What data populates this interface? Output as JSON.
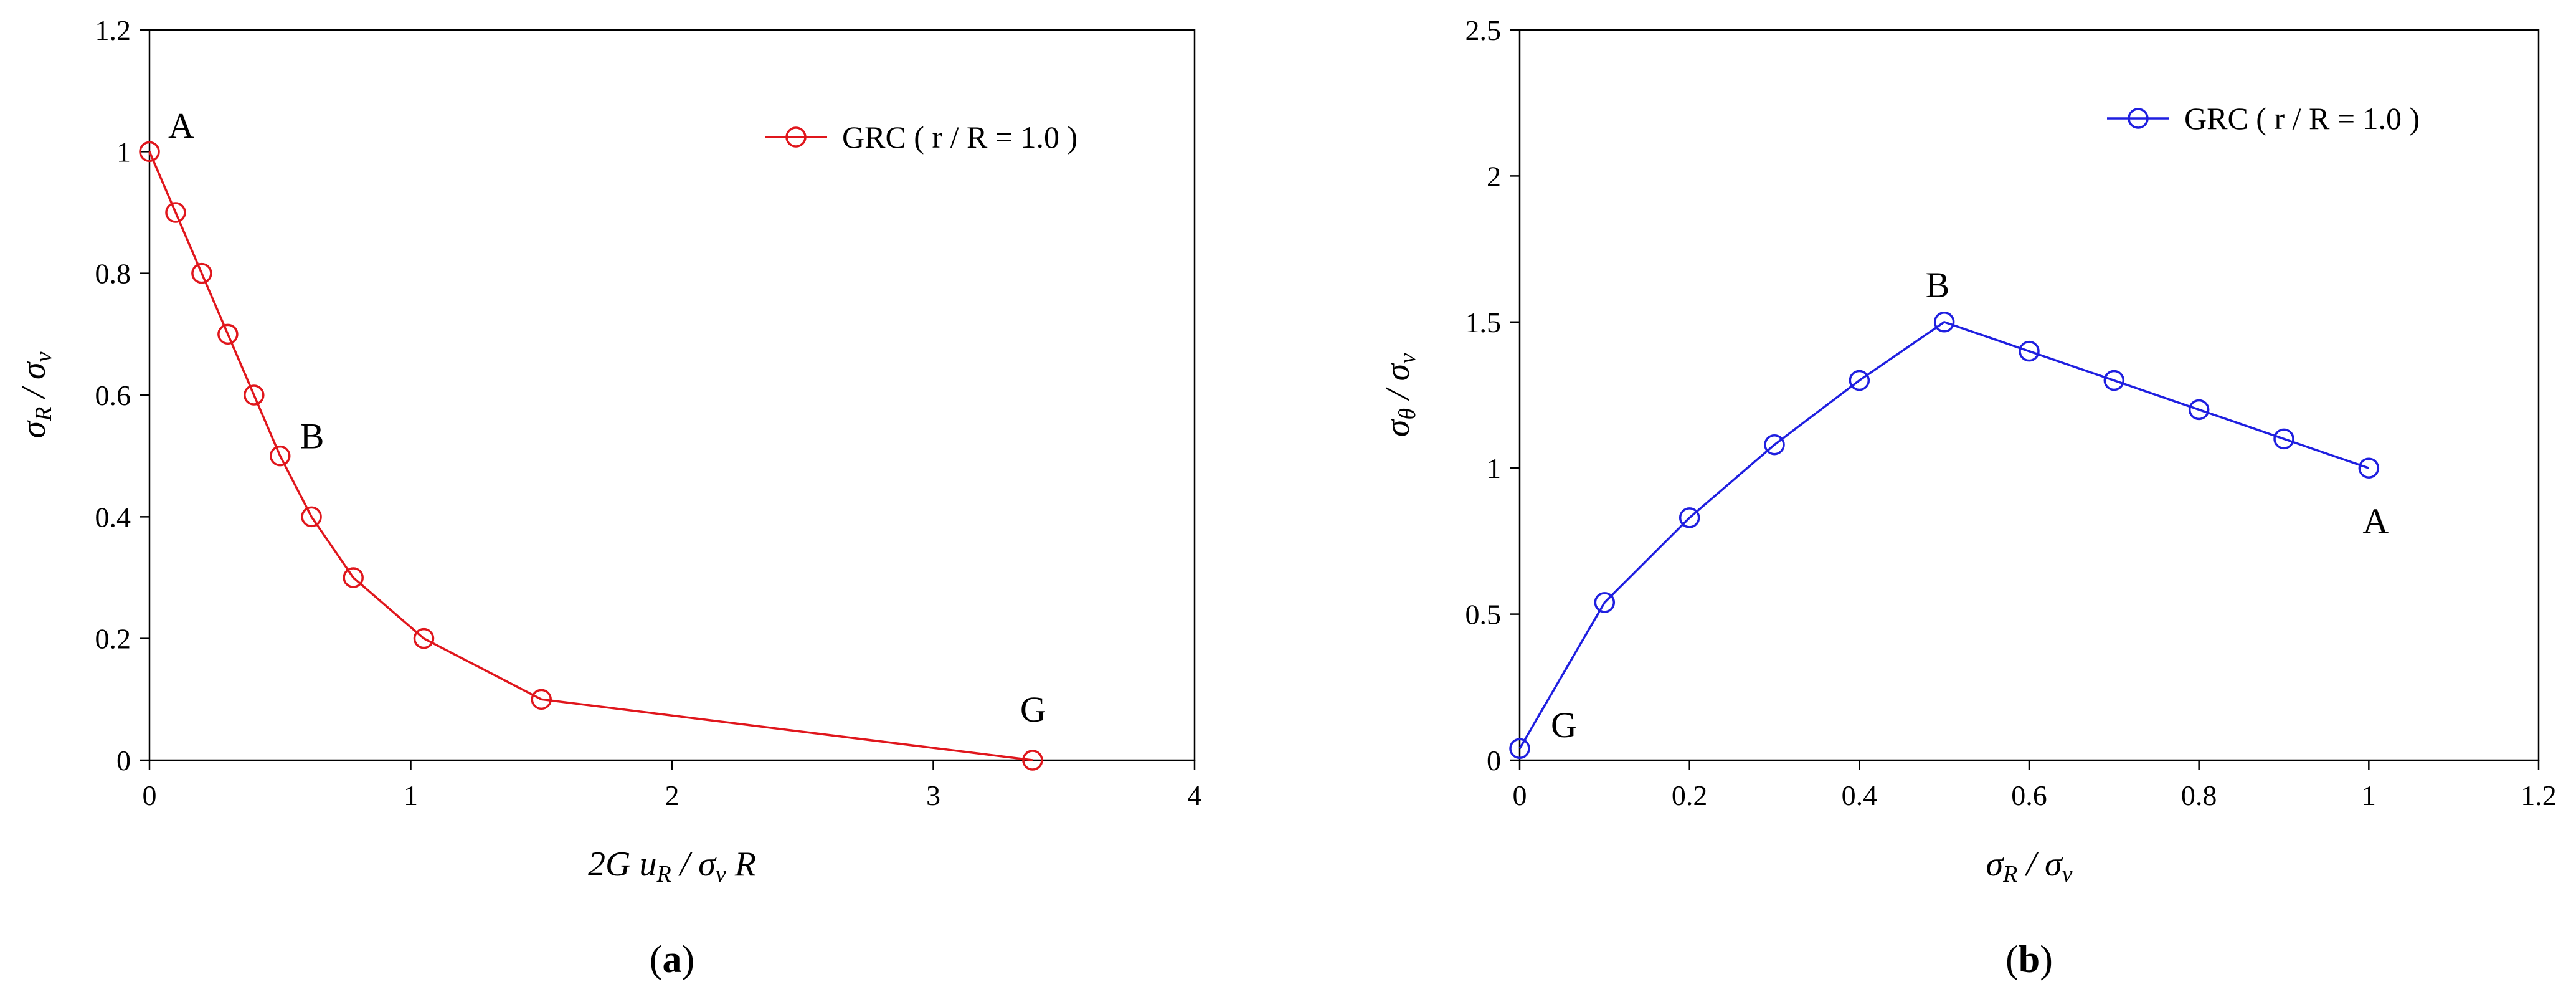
{
  "chart_data": [
    {
      "type": "line",
      "caption_letter": "a",
      "xlabel_parts": [
        "2",
        "G u",
        "R",
        " / σ",
        "v",
        " R"
      ],
      "ylabel_parts": [
        "σ",
        "R",
        " / σ",
        "v"
      ],
      "xlim": [
        0,
        4
      ],
      "ylim": [
        0,
        1.2
      ],
      "xticks": [
        0,
        1,
        2,
        3,
        4
      ],
      "yticks": [
        0,
        0.2,
        0.4,
        0.6,
        0.8,
        1,
        1.2
      ],
      "legend": "top-right",
      "series": [
        {
          "name": "GRC ( r / R = 1.0 )",
          "color": "#e0161c",
          "x": [
            0.0,
            0.1,
            0.2,
            0.3,
            0.4,
            0.5,
            0.62,
            0.78,
            1.05,
            1.5,
            3.38
          ],
          "y": [
            1.0,
            0.9,
            0.8,
            0.7,
            0.6,
            0.5,
            0.4,
            0.3,
            0.2,
            0.1,
            0.0
          ]
        }
      ],
      "annotations": [
        {
          "text": "A",
          "x": 0.0,
          "y": 1.0
        },
        {
          "text": "B",
          "x": 0.5,
          "y": 0.5
        },
        {
          "text": "G",
          "x": 3.38,
          "y": 0.0
        }
      ]
    },
    {
      "type": "line",
      "caption_letter": "b",
      "xlabel_parts": [
        "σ",
        "R",
        " / σ",
        "v"
      ],
      "ylabel_parts": [
        "σ",
        "θ",
        " / σ",
        "v"
      ],
      "xlim": [
        0,
        1.2
      ],
      "ylim": [
        0,
        2.5
      ],
      "xticks": [
        0,
        0.2,
        0.4,
        0.6,
        0.8,
        1,
        1.2
      ],
      "yticks": [
        0,
        0.5,
        1,
        1.5,
        2,
        2.5
      ],
      "legend": "top-right",
      "series": [
        {
          "name": "GRC ( r / R = 1.0 )",
          "color": "#1f1fe0",
          "x": [
            0.0,
            0.1,
            0.2,
            0.3,
            0.4,
            0.5,
            0.6,
            0.7,
            0.8,
            0.9,
            1.0
          ],
          "y": [
            0.04,
            0.54,
            0.83,
            1.08,
            1.3,
            1.5,
            1.4,
            1.3,
            1.2,
            1.1,
            1.0
          ]
        }
      ],
      "annotations": [
        {
          "text": "B",
          "x": 0.5,
          "y": 1.5
        },
        {
          "text": "A",
          "x": 1.0,
          "y": 1.0
        },
        {
          "text": "G",
          "x": 0.0,
          "y": 0.04
        }
      ]
    }
  ]
}
